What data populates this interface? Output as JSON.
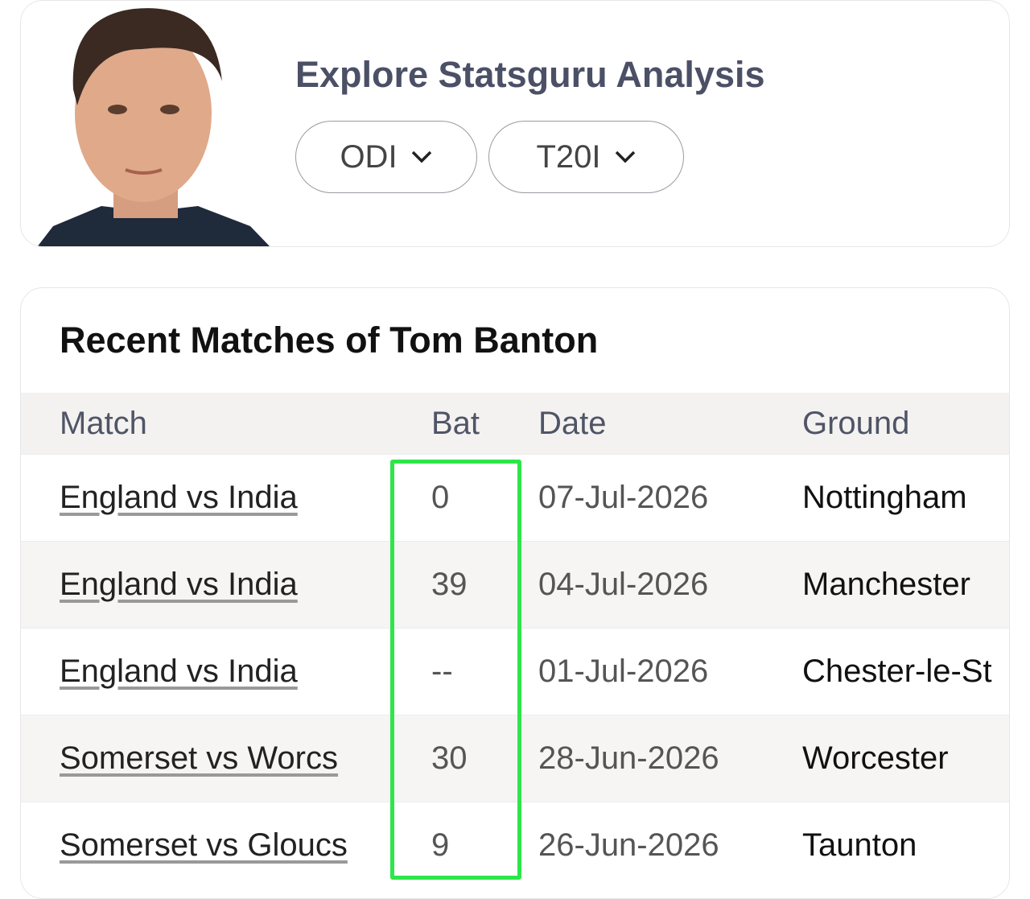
{
  "header": {
    "title": "Explore Statsguru Analysis",
    "buttons": [
      "ODI",
      "T20I"
    ]
  },
  "card": {
    "title": "Recent Matches of Tom Banton"
  },
  "table": {
    "columns": [
      "Match",
      "Bat",
      "Date",
      "Ground"
    ],
    "rows": [
      [
        "England vs India",
        "0",
        "07-Jul-2026",
        "Nottingham"
      ],
      [
        "England vs India",
        "39",
        "04-Jul-2026",
        "Manchester"
      ],
      [
        "England vs India",
        "--",
        "01-Jul-2026",
        "Chester-le-St"
      ],
      [
        "Somerset vs Worcs",
        "30",
        "28-Jun-2026",
        "Worcester"
      ],
      [
        "Somerset vs Gloucs",
        "9",
        "26-Jun-2026",
        "Taunton"
      ]
    ]
  }
}
